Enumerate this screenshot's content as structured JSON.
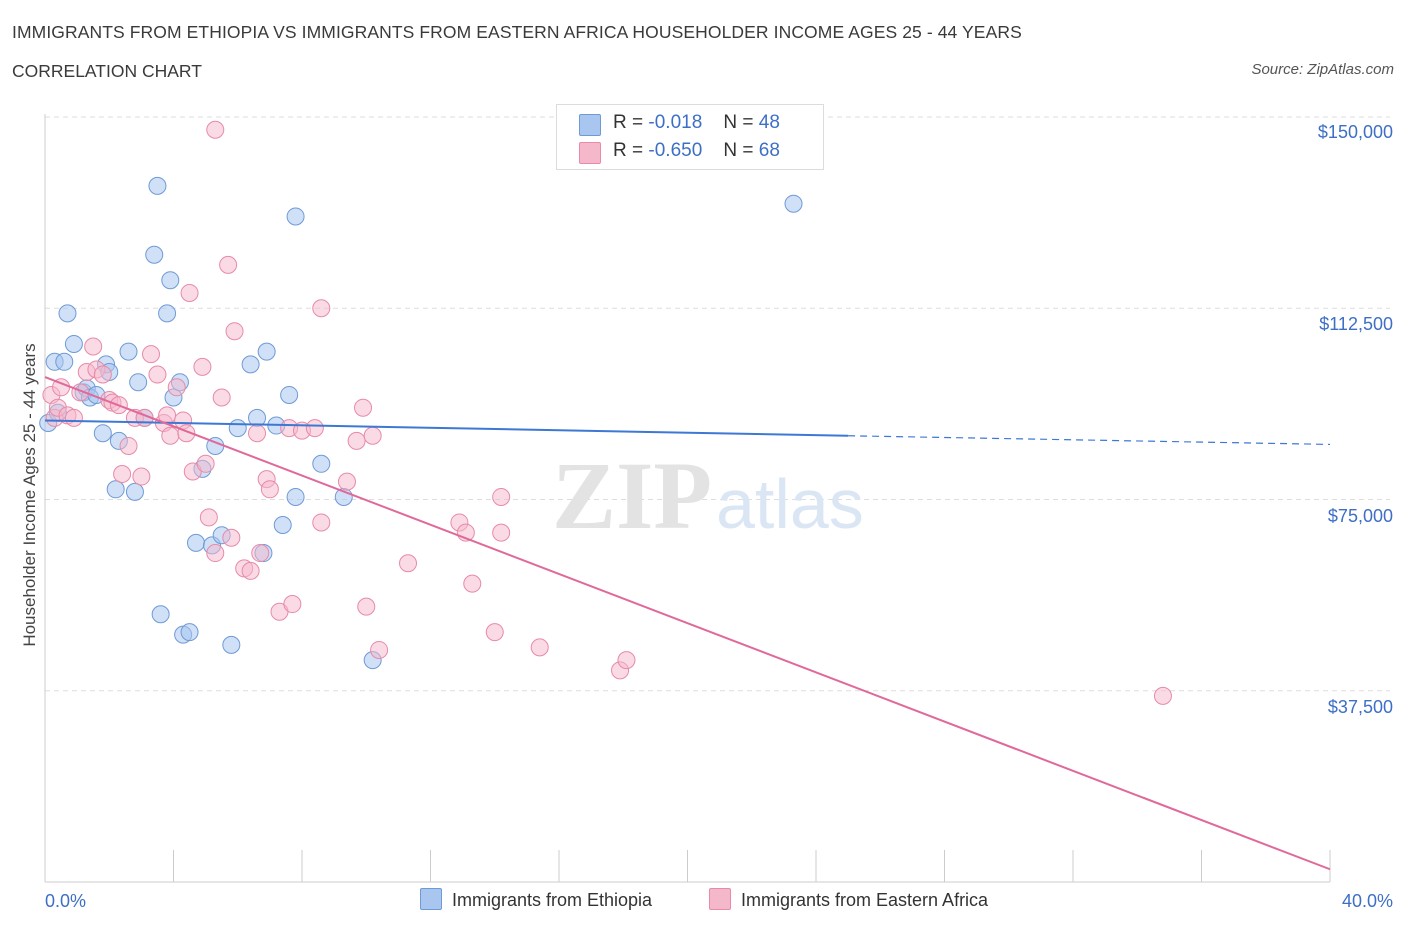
{
  "header": {
    "title": "IMMIGRANTS FROM ETHIOPIA VS IMMIGRANTS FROM EASTERN AFRICA HOUSEHOLDER INCOME AGES 25 - 44 YEARS",
    "subtitle": "CORRELATION CHART",
    "source": "Source: ZipAtlas.com"
  },
  "legend": {
    "rows": [
      {
        "r_label": "R =",
        "r_value": "-0.018",
        "n_label": "N =",
        "n_value": "48"
      },
      {
        "r_label": "R =",
        "r_value": "-0.650",
        "n_label": "N =",
        "n_value": "68"
      }
    ],
    "bottom": [
      "Immigrants from Ethiopia",
      "Immigrants from Eastern Africa"
    ]
  },
  "watermark": {
    "zip": "ZIP",
    "atlas": "atlas"
  },
  "colors": {
    "ethiopia_fill": "#a8c6f0",
    "ethiopia_stroke": "#6f9ad6",
    "ethiopia_line": "#3d78d4",
    "eastern_fill": "#f5b8cb",
    "eastern_stroke": "#e88aa8",
    "eastern_line": "#e0699a",
    "tick_text": "#3d6fc6",
    "grid": "#dddddd"
  },
  "chart_data": {
    "type": "scatter",
    "title": "IMMIGRANTS FROM ETHIOPIA VS IMMIGRANTS FROM EASTERN AFRICA HOUSEHOLDER INCOME AGES 25 - 44 YEARS",
    "xlabel": "",
    "ylabel": "Householder Income Ages 25 - 44 years",
    "xlim": [
      0,
      40
    ],
    "ylim": [
      0,
      150000
    ],
    "x_tick_labels": [
      "0.0%",
      "40.0%"
    ],
    "y_ticks": [
      37500,
      75000,
      112500,
      150000
    ],
    "y_tick_labels": [
      "$37,500",
      "$75,000",
      "$112,500",
      "$150,000"
    ],
    "grid": true,
    "legend_position": "top-center",
    "series": [
      {
        "name": "Immigrants from Ethiopia",
        "trend": {
          "x": [
            0,
            25
          ],
          "y": [
            90500,
            87500
          ],
          "dashed_to": {
            "x": 40,
            "y": 85800
          }
        },
        "points": [
          [
            0.1,
            90000
          ],
          [
            0.3,
            102000
          ],
          [
            0.4,
            92000
          ],
          [
            0.6,
            102000
          ],
          [
            0.7,
            111500
          ],
          [
            0.9,
            105500
          ],
          [
            1.2,
            96000
          ],
          [
            1.3,
            96800
          ],
          [
            1.4,
            95000
          ],
          [
            1.6,
            95500
          ],
          [
            1.8,
            88000
          ],
          [
            1.9,
            101500
          ],
          [
            2.0,
            100000
          ],
          [
            2.3,
            86500
          ],
          [
            2.2,
            77000
          ],
          [
            2.6,
            104000
          ],
          [
            2.8,
            76500
          ],
          [
            2.9,
            98000
          ],
          [
            3.1,
            91000
          ],
          [
            3.4,
            123000
          ],
          [
            3.5,
            136500
          ],
          [
            3.6,
            52500
          ],
          [
            3.8,
            111500
          ],
          [
            3.9,
            118000
          ],
          [
            4.0,
            95000
          ],
          [
            4.2,
            98000
          ],
          [
            4.3,
            48500
          ],
          [
            4.5,
            49000
          ],
          [
            4.7,
            66500
          ],
          [
            4.9,
            81000
          ],
          [
            5.2,
            66000
          ],
          [
            5.3,
            85500
          ],
          [
            5.5,
            68000
          ],
          [
            5.8,
            46500
          ],
          [
            6.0,
            89000
          ],
          [
            6.4,
            101500
          ],
          [
            6.6,
            91000
          ],
          [
            6.8,
            64500
          ],
          [
            6.9,
            104000
          ],
          [
            7.2,
            89500
          ],
          [
            7.4,
            70000
          ],
          [
            7.6,
            95500
          ],
          [
            7.8,
            75500
          ],
          [
            7.8,
            130500
          ],
          [
            8.6,
            82000
          ],
          [
            9.3,
            75500
          ],
          [
            10.2,
            43500
          ],
          [
            23.3,
            133000
          ]
        ]
      },
      {
        "name": "Immigrants from Eastern Africa",
        "trend": {
          "x": [
            0,
            40
          ],
          "y": [
            99000,
            2500
          ]
        },
        "points": [
          [
            0.2,
            95500
          ],
          [
            0.3,
            91000
          ],
          [
            0.4,
            93000
          ],
          [
            0.5,
            97000
          ],
          [
            0.7,
            91500
          ],
          [
            0.9,
            91000
          ],
          [
            1.1,
            96000
          ],
          [
            1.3,
            100000
          ],
          [
            1.5,
            105000
          ],
          [
            1.6,
            100500
          ],
          [
            1.8,
            99500
          ],
          [
            2.0,
            94500
          ],
          [
            2.1,
            94000
          ],
          [
            2.3,
            93500
          ],
          [
            2.4,
            80000
          ],
          [
            2.6,
            85500
          ],
          [
            2.8,
            91000
          ],
          [
            3.0,
            79500
          ],
          [
            3.1,
            91000
          ],
          [
            3.3,
            103500
          ],
          [
            3.5,
            99500
          ],
          [
            3.7,
            90000
          ],
          [
            3.8,
            91500
          ],
          [
            3.9,
            87500
          ],
          [
            4.1,
            97000
          ],
          [
            4.3,
            90500
          ],
          [
            4.4,
            88000
          ],
          [
            4.5,
            115500
          ],
          [
            4.6,
            80500
          ],
          [
            4.9,
            101000
          ],
          [
            5.0,
            82000
          ],
          [
            5.1,
            71500
          ],
          [
            5.3,
            64500
          ],
          [
            5.3,
            147500
          ],
          [
            5.5,
            95000
          ],
          [
            5.7,
            121000
          ],
          [
            5.8,
            67500
          ],
          [
            5.9,
            108000
          ],
          [
            6.2,
            61500
          ],
          [
            6.4,
            61000
          ],
          [
            6.6,
            88000
          ],
          [
            6.7,
            64500
          ],
          [
            6.9,
            79000
          ],
          [
            7.0,
            77000
          ],
          [
            7.3,
            53000
          ],
          [
            7.6,
            89000
          ],
          [
            7.7,
            54500
          ],
          [
            8.0,
            88500
          ],
          [
            8.4,
            89000
          ],
          [
            8.6,
            70500
          ],
          [
            8.6,
            112500
          ],
          [
            9.4,
            78500
          ],
          [
            9.7,
            86500
          ],
          [
            9.9,
            93000
          ],
          [
            10.2,
            87500
          ],
          [
            10.4,
            45500
          ],
          [
            11.3,
            62500
          ],
          [
            12.9,
            70500
          ],
          [
            13.1,
            68500
          ],
          [
            13.3,
            58500
          ],
          [
            14.0,
            49000
          ],
          [
            14.2,
            75500
          ],
          [
            14.2,
            68500
          ],
          [
            15.4,
            46000
          ],
          [
            17.9,
            41500
          ],
          [
            18.1,
            43500
          ],
          [
            34.8,
            36500
          ],
          [
            10.0,
            54000
          ]
        ]
      }
    ]
  }
}
